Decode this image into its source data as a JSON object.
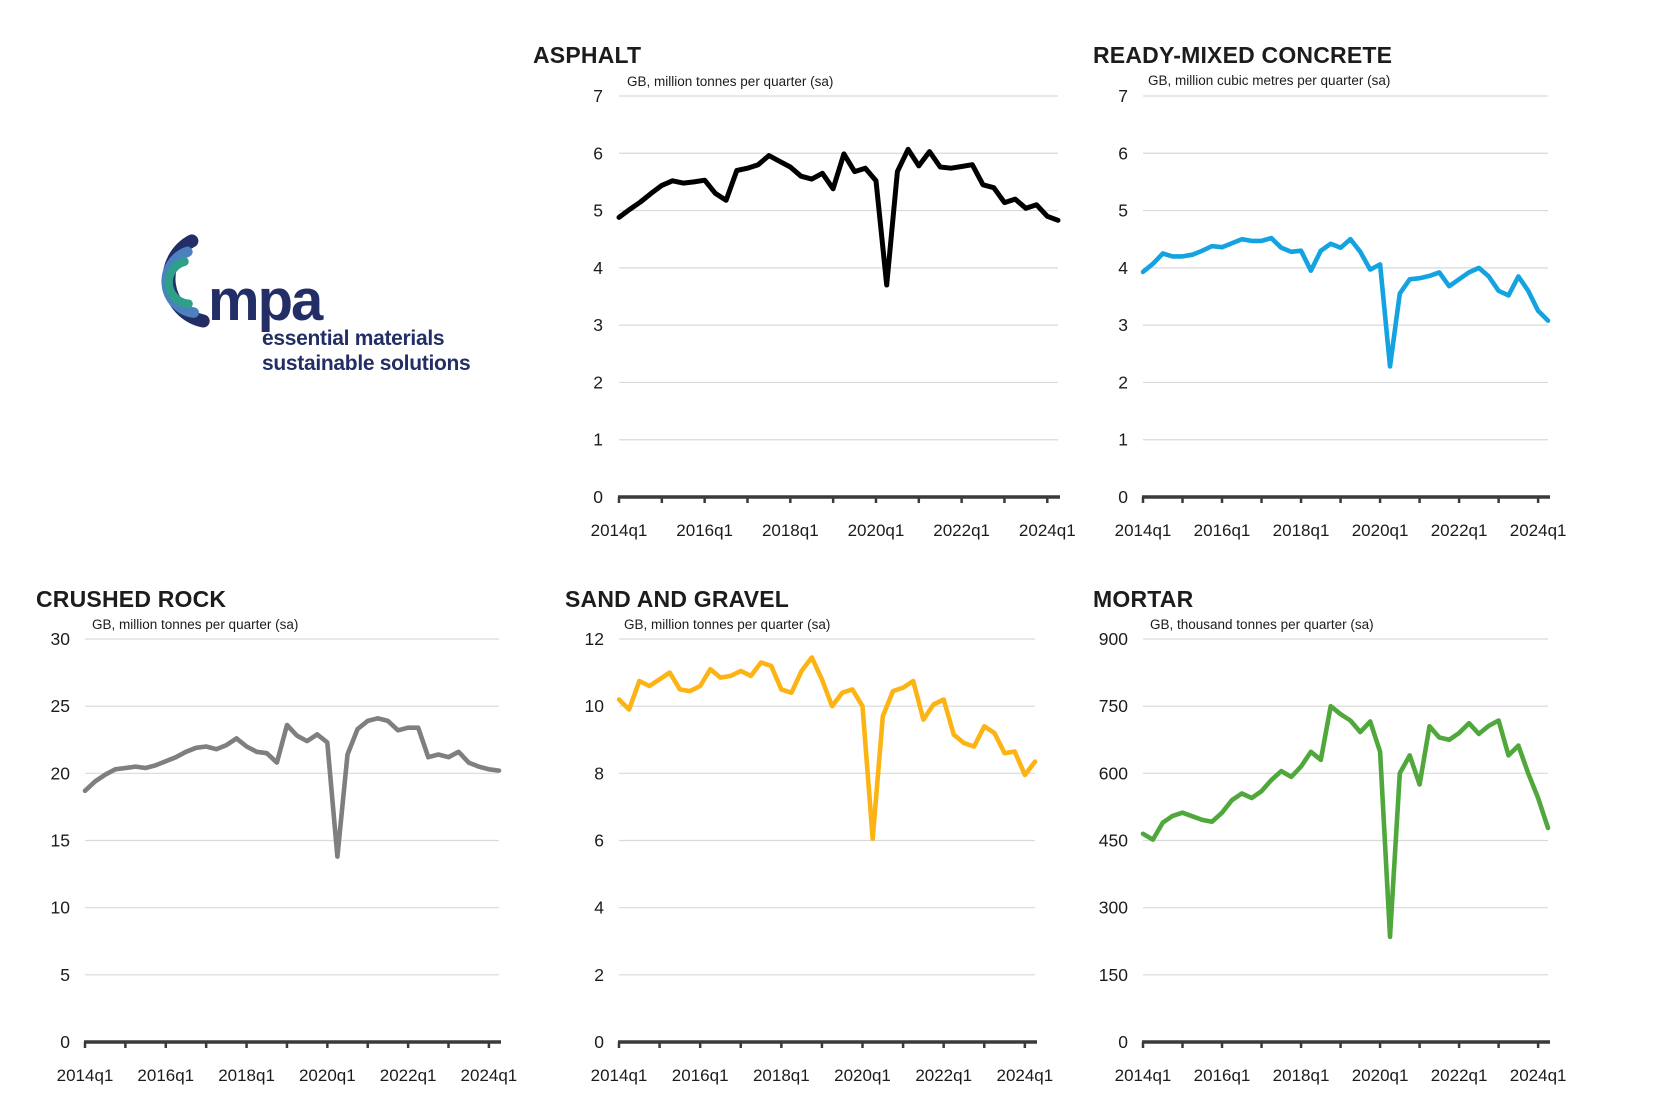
{
  "page": {
    "background": "#ffffff"
  },
  "logo": {
    "text": "mpa",
    "tagline_line1": "essential materials",
    "tagline_line2": "sustainable solutions",
    "colors": {
      "navy": "#232E66",
      "blue": "#4D80BE",
      "teal": "#2E9F89"
    }
  },
  "style": {
    "gridline_color": "#D9D9D9",
    "axis_color": "#3A3A3A",
    "text_color": "#1C1C1C"
  },
  "x_axis": {
    "labels": [
      "2014q1",
      "2016q1",
      "2018q1",
      "2020q1",
      "2022q1",
      "2024q1"
    ],
    "minor_tick_years": [
      2014,
      2015,
      2016,
      2017,
      2018,
      2019,
      2020,
      2021,
      2022,
      2023,
      2024
    ],
    "frequency": "quarterly",
    "range_start": "2014q1",
    "range_end": "2024q2"
  },
  "chart_data": [
    {
      "id": "asphalt",
      "type": "line",
      "title": "ASPHALT",
      "subtitle": "GB, million tonnes per quarter (sa)",
      "line_color": "#000000",
      "y_axis": {
        "min": 0,
        "max": 7,
        "step": 1,
        "tick_labels": [
          0,
          1,
          2,
          3,
          4,
          5,
          6,
          7
        ]
      },
      "values": [
        4.88,
        5.02,
        5.15,
        5.3,
        5.44,
        5.52,
        5.48,
        5.5,
        5.53,
        5.3,
        5.18,
        5.7,
        5.74,
        5.8,
        5.96,
        5.86,
        5.76,
        5.6,
        5.55,
        5.65,
        5.38,
        5.99,
        5.68,
        5.74,
        5.52,
        3.7,
        5.68,
        6.07,
        5.78,
        6.03,
        5.76,
        5.74,
        5.77,
        5.8,
        5.45,
        5.4,
        5.14,
        5.2,
        5.04,
        5.1,
        4.9,
        4.83
      ]
    },
    {
      "id": "rmc",
      "type": "line",
      "title": "READY-MIXED CONCRETE",
      "subtitle": "GB, million cubic metres per quarter (sa)",
      "line_color": "#14A3E1",
      "y_axis": {
        "min": 0,
        "max": 7,
        "step": 1,
        "tick_labels": [
          0,
          1,
          2,
          3,
          4,
          5,
          6,
          7
        ]
      },
      "values": [
        3.93,
        4.07,
        4.25,
        4.2,
        4.2,
        4.23,
        4.3,
        4.38,
        4.36,
        4.43,
        4.5,
        4.47,
        4.47,
        4.52,
        4.35,
        4.28,
        4.3,
        3.95,
        4.3,
        4.42,
        4.35,
        4.5,
        4.28,
        3.97,
        4.06,
        2.28,
        3.55,
        3.8,
        3.82,
        3.86,
        3.92,
        3.68,
        3.8,
        3.92,
        4.0,
        3.85,
        3.6,
        3.52,
        3.85,
        3.6,
        3.25,
        3.08
      ]
    },
    {
      "id": "crushed",
      "type": "line",
      "title": "CRUSHED ROCK",
      "subtitle": "GB, million tonnes per quarter (sa)",
      "line_color": "#7F7F7F",
      "y_axis": {
        "min": 0,
        "max": 30,
        "step": 5,
        "tick_labels": [
          0,
          5,
          10,
          15,
          20,
          25,
          30
        ]
      },
      "values": [
        18.7,
        19.4,
        19.9,
        20.3,
        20.4,
        20.5,
        20.4,
        20.6,
        20.9,
        21.2,
        21.6,
        21.9,
        22.0,
        21.8,
        22.1,
        22.6,
        22.0,
        21.6,
        21.5,
        20.8,
        23.6,
        22.8,
        22.4,
        22.9,
        22.3,
        13.8,
        21.4,
        23.3,
        23.9,
        24.1,
        23.9,
        23.2,
        23.4,
        23.4,
        21.2,
        21.4,
        21.2,
        21.6,
        20.8,
        20.5,
        20.3,
        20.2
      ]
    },
    {
      "id": "sand",
      "type": "line",
      "title": "SAND AND GRAVEL",
      "subtitle": "GB, million tonnes per quarter (sa)",
      "line_color": "#FCB414",
      "y_axis": {
        "min": 0,
        "max": 12,
        "step": 2,
        "tick_labels": [
          0,
          2,
          4,
          6,
          8,
          10,
          12
        ]
      },
      "values": [
        10.2,
        9.9,
        10.75,
        10.6,
        10.8,
        11.0,
        10.5,
        10.45,
        10.6,
        11.1,
        10.85,
        10.9,
        11.05,
        10.9,
        11.3,
        11.2,
        10.5,
        10.4,
        11.05,
        11.45,
        10.8,
        10.0,
        10.4,
        10.5,
        10.0,
        6.05,
        9.7,
        10.45,
        10.55,
        10.75,
        9.6,
        10.05,
        10.2,
        9.15,
        8.9,
        8.8,
        9.4,
        9.2,
        8.6,
        8.65,
        7.95,
        8.35
      ]
    },
    {
      "id": "mortar",
      "type": "line",
      "title": "MORTAR",
      "subtitle": "GB, thousand tonnes per quarter (sa)",
      "line_color": "#50A83C",
      "y_axis": {
        "min": 0,
        "max": 900,
        "step": 150,
        "tick_labels": [
          0,
          150,
          300,
          450,
          600,
          750,
          900
        ]
      },
      "values": [
        465,
        452,
        490,
        505,
        512,
        504,
        496,
        492,
        512,
        540,
        555,
        545,
        560,
        585,
        605,
        592,
        615,
        648,
        630,
        750,
        732,
        718,
        692,
        716,
        648,
        235,
        600,
        640,
        575,
        705,
        680,
        675,
        690,
        712,
        688,
        706,
        718,
        640,
        662,
        600,
        545,
        478
      ]
    }
  ]
}
